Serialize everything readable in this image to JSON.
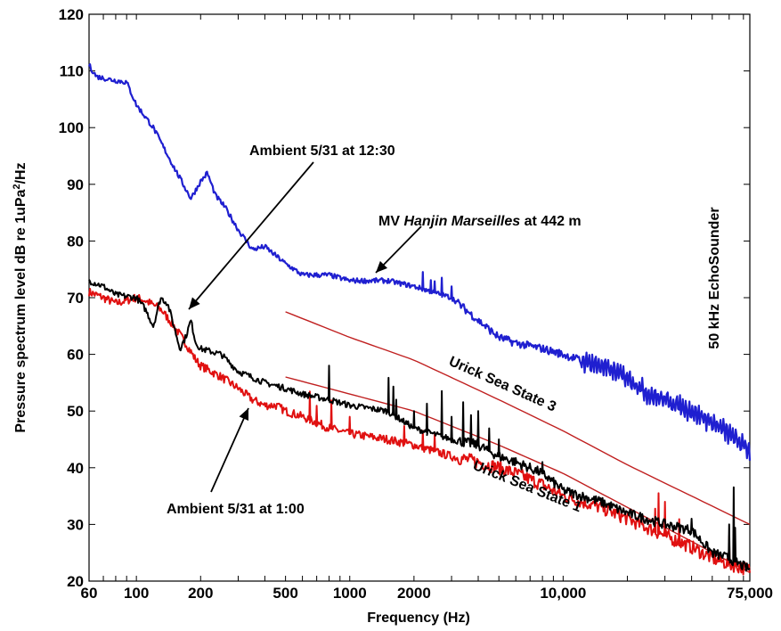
{
  "chart_data": {
    "type": "line",
    "title": "",
    "xlabel": "Frequency (Hz)",
    "ylabel_prefix": "Pressure spectrum level dB re 1uPa",
    "ylabel_sup": "2",
    "ylabel_suffix": "/Hz",
    "x_scale": "log",
    "xlim": [
      60,
      75000
    ],
    "ylim": [
      20,
      120
    ],
    "grid": false,
    "legend": "none",
    "x_ticks": [
      {
        "value": 60,
        "label": "60"
      },
      {
        "value": 100,
        "label": "100"
      },
      {
        "value": 200,
        "label": "200"
      },
      {
        "value": 500,
        "label": "500"
      },
      {
        "value": 1000,
        "label": "1000"
      },
      {
        "value": 2000,
        "label": "2000"
      },
      {
        "value": 10000,
        "label": "10,000"
      },
      {
        "value": 75000,
        "label": "75,000"
      }
    ],
    "y_ticks": [
      {
        "value": 20,
        "label": "20"
      },
      {
        "value": 30,
        "label": "30"
      },
      {
        "value": 40,
        "label": "40"
      },
      {
        "value": 50,
        "label": "50"
      },
      {
        "value": 60,
        "label": "60"
      },
      {
        "value": 70,
        "label": "70"
      },
      {
        "value": 80,
        "label": "80"
      },
      {
        "value": 90,
        "label": "90"
      },
      {
        "value": 100,
        "label": "100"
      },
      {
        "value": 110,
        "label": "110"
      },
      {
        "value": 120,
        "label": "120"
      }
    ],
    "series": [
      {
        "key": "ship",
        "color": "#1f1fd0",
        "width": 2.2,
        "noise": 0.45,
        "x": [
          60,
          65,
          75,
          90,
          100,
          120,
          150,
          180,
          200,
          215,
          235,
          260,
          300,
          350,
          400,
          500,
          600,
          800,
          1000,
          1500,
          2000,
          3000,
          4000,
          5000,
          6000,
          8000,
          10000,
          12000,
          15000,
          20000,
          25000,
          30000,
          40000,
          50000,
          60000,
          75000
        ],
        "y": [
          111,
          109,
          108.5,
          108,
          104,
          100,
          93,
          87.5,
          90.5,
          92,
          88,
          86,
          82,
          78.5,
          79,
          76,
          74,
          74,
          73,
          73,
          72,
          70,
          66,
          63,
          62,
          61,
          60,
          59,
          58,
          56,
          53,
          52,
          50,
          48,
          46,
          43
        ]
      },
      {
        "key": "ambient1230",
        "color": "#000000",
        "width": 2,
        "noise": 0.55,
        "x": [
          60,
          70,
          80,
          100,
          110,
          120,
          130,
          140,
          150,
          160,
          170,
          180,
          190,
          200,
          250,
          300,
          400,
          500,
          600,
          800,
          1000,
          1500,
          2000,
          3000,
          4000,
          5000,
          6000,
          8000,
          10000,
          15000,
          20000,
          30000,
          40000,
          50000,
          60000,
          75000
        ],
        "y": [
          73,
          72,
          70.5,
          70,
          68,
          65,
          70,
          69,
          65,
          61,
          63,
          66,
          62,
          61,
          60,
          57,
          55,
          54,
          53,
          52,
          51,
          50,
          47,
          45,
          44,
          42,
          41,
          39,
          36,
          34,
          32,
          30,
          29,
          25,
          24,
          22
        ]
      },
      {
        "key": "ambient100",
        "color": "#e01010",
        "width": 2,
        "noise": 0.75,
        "x": [
          60,
          70,
          80,
          90,
          100,
          110,
          130,
          150,
          170,
          190,
          200,
          250,
          300,
          350,
          400,
          450,
          500,
          600,
          800,
          1000,
          1500,
          2000,
          3000,
          4000,
          5000,
          6000,
          8000,
          10000,
          15000,
          20000,
          30000,
          40000,
          50000,
          60000,
          75000
        ],
        "y": [
          71,
          70,
          69,
          69.5,
          70,
          69.5,
          68,
          65,
          62,
          59,
          58,
          56,
          54,
          52,
          51,
          51,
          50,
          49,
          47,
          46,
          45,
          44,
          42,
          41,
          40,
          39,
          37,
          35,
          33,
          31,
          28,
          26,
          24,
          23,
          22
        ]
      },
      {
        "key": "urick3",
        "color": "#c02020",
        "width": 1.4,
        "noise": 0,
        "x": [
          500,
          1000,
          2000,
          5000,
          10000,
          20000,
          40000,
          75000
        ],
        "y": [
          67.5,
          63,
          59,
          52,
          46.5,
          40.5,
          35,
          30
        ]
      },
      {
        "key": "urick1",
        "color": "#c02020",
        "width": 1.4,
        "noise": 0,
        "x": [
          500,
          1000,
          2000,
          5000,
          10000,
          20000,
          40000,
          75000
        ],
        "y": [
          56,
          53,
          50,
          44,
          39,
          33,
          27,
          21.5
        ]
      }
    ],
    "spikes": [
      {
        "key": "ambient1230",
        "x": [
          800,
          1520,
          1600,
          1650,
          2000,
          2300,
          2700,
          3000,
          3400,
          3700,
          4000,
          4500,
          5000,
          8000,
          40000,
          60000,
          63000,
          64000
        ],
        "h": [
          6,
          6,
          5,
          3,
          3,
          5,
          8,
          4,
          7,
          5,
          6,
          4,
          3,
          2,
          2,
          6,
          13,
          6
        ]
      },
      {
        "key": "ambient100",
        "x": [
          650,
          700,
          820,
          1000,
          1800,
          2200,
          2500,
          27000,
          28000,
          30000,
          35000,
          60000,
          64000
        ],
        "h": [
          5,
          3,
          5,
          3,
          3,
          3,
          3,
          4,
          7,
          6,
          4,
          5,
          3
        ]
      },
      {
        "key": "ship",
        "x": [
          2200,
          2400,
          2500,
          2700,
          3000
        ],
        "h": [
          3,
          2,
          2,
          3,
          2
        ]
      }
    ],
    "annotations": [
      {
        "text": "Ambient 5/31 at 12:30"
      },
      {
        "text_prefix": "MV ",
        "text_italic": "Hanjin Marseilles",
        "text_suffix": " at 442 m"
      },
      {
        "text": "Ambient 5/31 at 1:00"
      },
      {
        "text": "50 kHz EchoSounder"
      },
      {
        "text": "Urick Sea State 3"
      },
      {
        "text": "Urick Sea State 1"
      }
    ]
  }
}
